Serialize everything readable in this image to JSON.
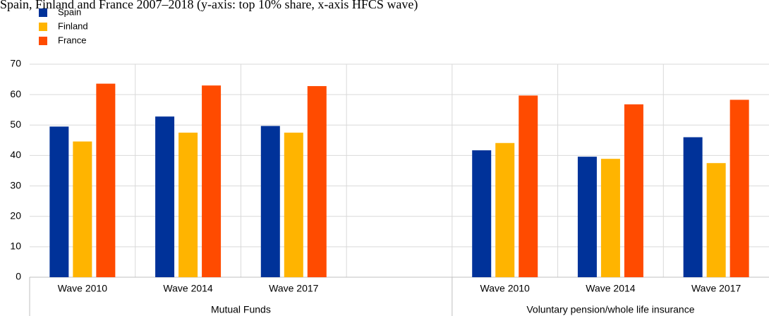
{
  "chart_data": {
    "type": "bar",
    "title": "Spain, Finland and France 2007–2018 (y-axis: top 10% share, x-axis HFCS wave)",
    "groups": [
      {
        "label": "Mutual Funds",
        "categories": [
          "Wave 2010",
          "Wave 2014",
          "Wave 2017",
          null
        ]
      },
      {
        "label": "Voluntary pension/whole life insurance",
        "categories": [
          "Wave 2010",
          "Wave 2014",
          "Wave 2017"
        ]
      }
    ],
    "series": [
      {
        "name": "Spain",
        "color": "#003299",
        "values": [
          49.5,
          52.8,
          49.7,
          null,
          41.7,
          39.6,
          46.0
        ]
      },
      {
        "name": "Finland",
        "color": "#ffb400",
        "values": [
          44.6,
          47.5,
          47.5,
          null,
          44.1,
          38.9,
          37.5
        ]
      },
      {
        "name": "France",
        "color": "#ff4b00",
        "values": [
          63.6,
          63.0,
          62.8,
          null,
          59.7,
          56.8,
          58.3
        ]
      }
    ],
    "ylim": [
      0,
      70
    ],
    "yticks": [
      0,
      10,
      20,
      30,
      40,
      50,
      60,
      70
    ],
    "grid": true,
    "legend": "top-left"
  }
}
